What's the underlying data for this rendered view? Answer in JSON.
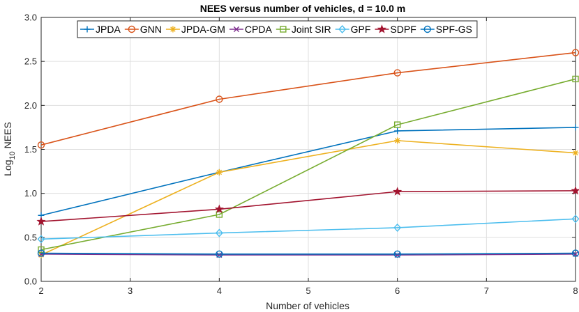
{
  "chart_data": {
    "type": "line",
    "title": "NEES versus number of vehicles, d = 10.0 m",
    "xlabel": "Number of vehicles",
    "ylabel": {
      "prefix": "Log",
      "subscript": "10",
      "suffix": " NEES"
    },
    "xlim": [
      2,
      8
    ],
    "ylim": [
      0,
      3
    ],
    "xticks": [
      2,
      3,
      4,
      5,
      6,
      7,
      8
    ],
    "yticks": [
      0,
      0.5,
      1,
      1.5,
      2,
      2.5,
      3
    ],
    "ytick_labels": [
      "0.0",
      "0.5",
      "1.0",
      "1.5",
      "2.0",
      "2.5",
      "3.0"
    ],
    "grid": true,
    "legend_position": "top",
    "x": [
      2,
      4,
      6,
      8
    ],
    "series": [
      {
        "name": "JPDA",
        "color": "#0072BD",
        "marker": "plus",
        "values": [
          0.75,
          1.24,
          1.71,
          1.75
        ]
      },
      {
        "name": "GNN",
        "color": "#D95319",
        "marker": "circle",
        "values": [
          1.55,
          2.07,
          2.37,
          2.6
        ]
      },
      {
        "name": "JPDA-GM",
        "color": "#EDB120",
        "marker": "asterisk",
        "values": [
          0.3,
          1.24,
          1.6,
          1.46
        ]
      },
      {
        "name": "CPDA",
        "color": "#7E2F8E",
        "marker": "cross",
        "values": [
          0.31,
          0.3,
          0.3,
          0.31
        ]
      },
      {
        "name": "Joint SIR",
        "color": "#77AC30",
        "marker": "square",
        "values": [
          0.36,
          0.76,
          1.78,
          2.3
        ]
      },
      {
        "name": "GPF",
        "color": "#4DBEEE",
        "marker": "diamond",
        "values": [
          0.48,
          0.55,
          0.61,
          0.71
        ]
      },
      {
        "name": "SDPF",
        "color": "#A2142F",
        "marker": "star",
        "values": [
          0.68,
          0.82,
          1.02,
          1.03
        ]
      },
      {
        "name": "SPF-GS",
        "color": "#0072BD",
        "marker": "circle",
        "values": [
          0.32,
          0.31,
          0.31,
          0.32
        ]
      }
    ]
  }
}
